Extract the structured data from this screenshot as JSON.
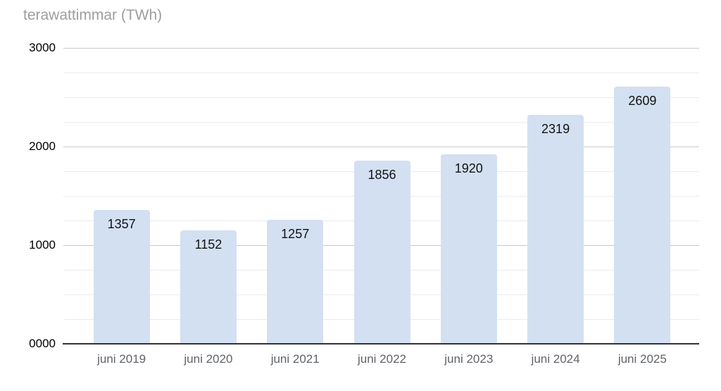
{
  "chart_data": {
    "type": "bar",
    "title": "terawattimmar (TWh)",
    "categories": [
      "juni 2019",
      "juni 2020",
      "juni 2021",
      "juni 2022",
      "juni 2023",
      "juni 2024",
      "juni 2025"
    ],
    "values": [
      1357,
      1152,
      1257,
      1856,
      1920,
      2319,
      2609
    ],
    "xlabel": "",
    "ylabel": "terawattimmar (TWh)",
    "ylim": [
      0,
      3000
    ],
    "ytick_values": [
      0,
      1000,
      2000,
      3000
    ],
    "ytick_labels": [
      "0000",
      "1000",
      "2000",
      "3000"
    ],
    "minor_grid_step": 250,
    "grid": "major-and-minor-horizontal",
    "legend_position": "none",
    "value_labels_shown": true,
    "colors": {
      "bar": "#d3e0f1",
      "value_label": "#111111",
      "axis_label": "#5f6368",
      "ytick_label": "#000000",
      "title": "#9e9e9e",
      "major_grid": "#c9c9c9",
      "minor_grid": "#ebebeb",
      "baseline": "#333333"
    }
  }
}
